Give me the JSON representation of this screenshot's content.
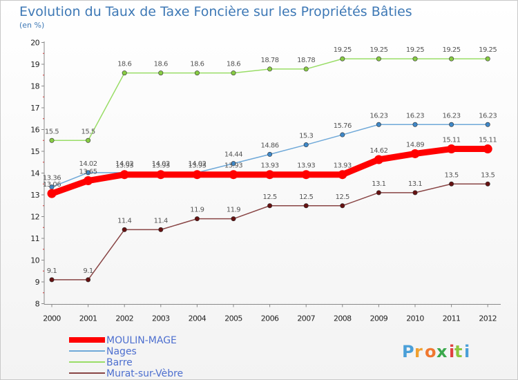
{
  "chart_data": {
    "type": "line",
    "title": "Evolution du Taux de Taxe Foncière sur les Propriétés Bâties",
    "subtitle": "(en %)",
    "x": [
      "2000",
      "2001",
      "2002",
      "2003",
      "2004",
      "2005",
      "2006",
      "2007",
      "2008",
      "2009",
      "2010",
      "2011",
      "2012"
    ],
    "ylim": [
      8,
      20
    ],
    "yticks": [
      8,
      9,
      10,
      11,
      12,
      13,
      14,
      15,
      16,
      17,
      18,
      19,
      20
    ],
    "grid": false,
    "legend_position": "bottom-left",
    "series": [
      {
        "name": "Nages",
        "color": "#6ea8d8",
        "marker": "#3f88c8",
        "values": [
          13.36,
          14.02,
          14.02,
          14.02,
          14.02,
          14.44,
          14.86,
          15.3,
          15.76,
          16.23,
          16.23,
          16.23,
          16.23
        ]
      },
      {
        "name": "Barre",
        "color": "#99dd66",
        "marker": "#88cc44",
        "values": [
          15.5,
          15.5,
          18.6,
          18.6,
          18.6,
          18.6,
          18.78,
          18.78,
          19.25,
          19.25,
          19.25,
          19.25,
          19.25
        ]
      },
      {
        "name": "Murat-sur-Vèbre",
        "color": "#884444",
        "marker": "#661111",
        "values": [
          9.1,
          9.1,
          11.4,
          11.4,
          11.9,
          11.9,
          12.5,
          12.5,
          12.5,
          13.1,
          13.1,
          13.5,
          13.5
        ]
      },
      {
        "name": "MOULIN-MAGE",
        "color": "#ff0000",
        "marker": "#ff0000",
        "values": [
          13.06,
          13.65,
          13.93,
          13.93,
          13.93,
          13.93,
          13.93,
          13.93,
          13.93,
          14.62,
          14.89,
          15.11,
          15.11
        ]
      }
    ],
    "legend": [
      {
        "name": "MOULIN-MAGE",
        "color": "#ff0000"
      },
      {
        "name": "Nages",
        "color": "#6ea8d8"
      },
      {
        "name": "Barre",
        "color": "#99dd66"
      },
      {
        "name": "Murat-sur-Vèbre",
        "color": "#884444"
      }
    ]
  },
  "logo": {
    "text": "Proxiti"
  }
}
